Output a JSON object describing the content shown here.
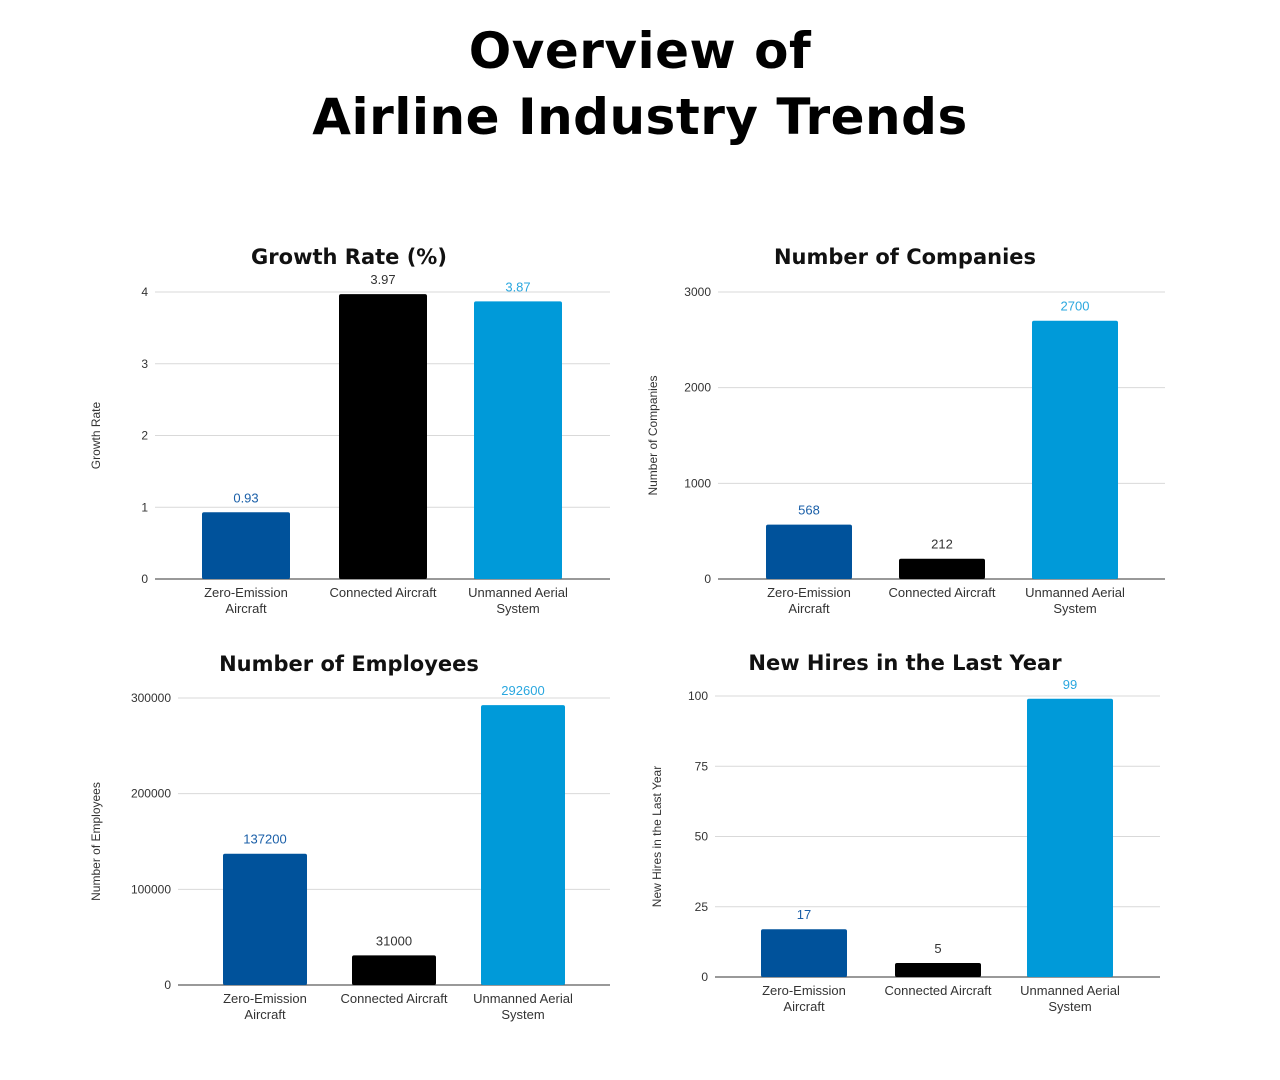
{
  "title_line1": "Overview of",
  "title_line2": "Airline Industry Trends",
  "colors": {
    "zero_emission": "#00529b",
    "connected": "#000000",
    "unmanned": "#009ad9",
    "grid": "#d9d9d9",
    "axis": "#333333"
  },
  "chart_data": [
    {
      "type": "bar",
      "title": "Growth Rate (%)",
      "ylabel": "Growth Rate",
      "xlabel": "",
      "categories": [
        "Zero-Emission Aircraft",
        "Connected Aircraft",
        "Unmanned Aerial System"
      ],
      "values": [
        0.93,
        3.97,
        3.87
      ],
      "data_labels": [
        "0.93",
        "3.97",
        "3.87"
      ],
      "ylim": [
        0,
        4
      ],
      "yticks": [
        0,
        1,
        2,
        3,
        4
      ],
      "grid": true
    },
    {
      "type": "bar",
      "title": "Number of Companies",
      "ylabel": "Number of Companies",
      "xlabel": "",
      "categories": [
        "Zero-Emission Aircraft",
        "Connected Aircraft",
        "Unmanned Aerial System"
      ],
      "values": [
        568,
        212,
        2700
      ],
      "data_labels": [
        "568",
        "212",
        "2700"
      ],
      "ylim": [
        0,
        3000
      ],
      "yticks": [
        0,
        1000,
        2000,
        3000
      ],
      "grid": true
    },
    {
      "type": "bar",
      "title": "Number of Employees",
      "ylabel": "Number of Employees",
      "xlabel": "",
      "categories": [
        "Zero-Emission Aircraft",
        "Connected Aircraft",
        "Unmanned Aerial System"
      ],
      "values": [
        137200,
        31000,
        292600
      ],
      "data_labels": [
        "137200",
        "31000",
        "292600"
      ],
      "ylim": [
        0,
        300000
      ],
      "yticks": [
        0,
        100000,
        200000,
        300000
      ],
      "grid": true
    },
    {
      "type": "bar",
      "title": "New Hires in the Last Year",
      "ylabel": "New Hires in the Last Year",
      "xlabel": "",
      "categories": [
        "Zero-Emission Aircraft",
        "Connected Aircraft",
        "Unmanned Aerial System"
      ],
      "values": [
        17,
        5,
        99
      ],
      "data_labels": [
        "17",
        "5",
        "99"
      ],
      "ylim": [
        0,
        100
      ],
      "yticks": [
        0,
        25,
        50,
        75,
        100
      ],
      "grid": true
    }
  ]
}
